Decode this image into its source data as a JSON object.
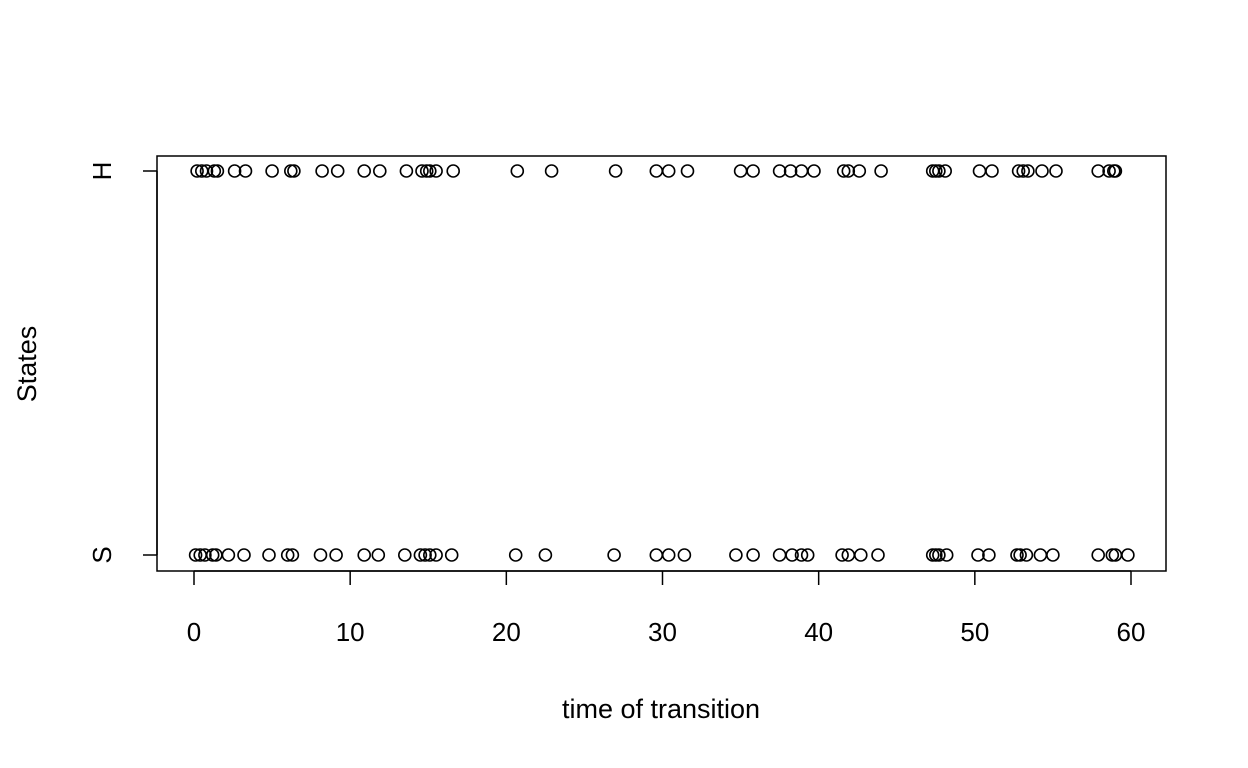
{
  "chart_data": {
    "type": "scatter",
    "title": "",
    "xlabel": "time of transition",
    "ylabel": "States",
    "xlim": [
      -2.4,
      62.4
    ],
    "x_ticks": [
      0,
      10,
      20,
      30,
      40,
      50,
      60
    ],
    "y_categories": [
      "S",
      "H"
    ],
    "grid": false,
    "legend": "none",
    "marker": "open-circle",
    "colors": {
      "marker": "#000000",
      "axis": "#000000",
      "background": "#ffffff"
    },
    "series": [
      {
        "state": "H",
        "x": [
          0.2,
          0.5,
          0.8,
          1.3,
          1.5,
          2.6,
          3.3,
          5.0,
          6.2,
          6.4,
          8.2,
          9.2,
          10.9,
          11.9,
          13.6,
          14.6,
          14.9,
          15.1,
          15.5,
          16.6,
          20.7,
          22.9,
          27.0,
          29.6,
          30.4,
          31.6,
          35.0,
          35.8,
          37.5,
          38.2,
          38.9,
          39.7,
          41.6,
          41.9,
          42.6,
          44.0,
          47.3,
          47.5,
          47.7,
          48.1,
          50.3,
          51.1,
          52.8,
          53.1,
          53.4,
          54.3,
          55.2,
          57.9,
          58.6,
          58.9,
          59.0
        ]
      },
      {
        "state": "S",
        "x": [
          0.1,
          0.4,
          0.7,
          1.2,
          1.4,
          2.2,
          3.2,
          4.8,
          6.0,
          6.3,
          8.1,
          9.1,
          10.9,
          11.8,
          13.5,
          14.5,
          14.8,
          15.1,
          15.5,
          16.5,
          20.6,
          22.5,
          26.9,
          29.6,
          30.4,
          31.4,
          34.7,
          35.8,
          37.5,
          38.3,
          38.9,
          39.3,
          41.5,
          41.9,
          42.7,
          43.8,
          47.3,
          47.5,
          47.7,
          48.2,
          50.2,
          50.9,
          52.7,
          52.9,
          53.3,
          54.2,
          55.0,
          57.9,
          58.8,
          59.0,
          59.8
        ]
      }
    ]
  }
}
